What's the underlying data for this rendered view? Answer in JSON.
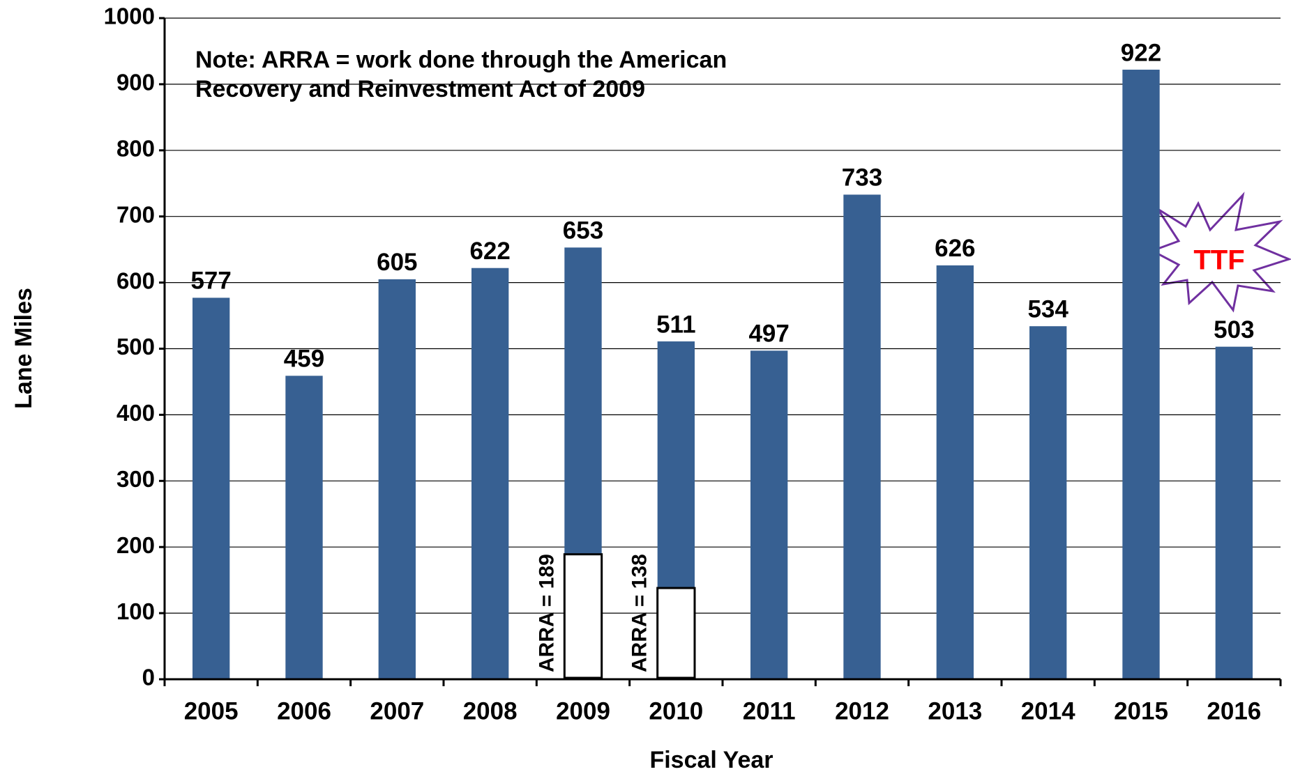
{
  "chart_data": {
    "type": "bar",
    "x_label": "Fiscal Year",
    "y_label": "Lane Miles",
    "categories": [
      "2005",
      "2006",
      "2007",
      "2008",
      "2009",
      "2010",
      "2011",
      "2012",
      "2013",
      "2014",
      "2015",
      "2016"
    ],
    "values": [
      577,
      459,
      605,
      622,
      653,
      511,
      497,
      733,
      626,
      534,
      922,
      503
    ],
    "color": "#376092",
    "arra_values": [
      null,
      null,
      null,
      null,
      189,
      138,
      null,
      null,
      null,
      null,
      null,
      null
    ],
    "arra_labels": [
      null,
      null,
      null,
      null,
      "ARRA = 189",
      "ARRA = 138",
      null,
      null,
      null,
      null,
      null,
      null
    ],
    "arra_color": "#ffffff",
    "ylim": [
      0,
      1000
    ],
    "yticks": [
      0,
      100,
      200,
      300,
      400,
      500,
      600,
      700,
      800,
      900,
      1000
    ],
    "grid": true,
    "annotations": [
      "Note: ARRA = work done through the American",
      "Recovery and Reinvestment Act of 2009",
      "TTF"
    ]
  }
}
